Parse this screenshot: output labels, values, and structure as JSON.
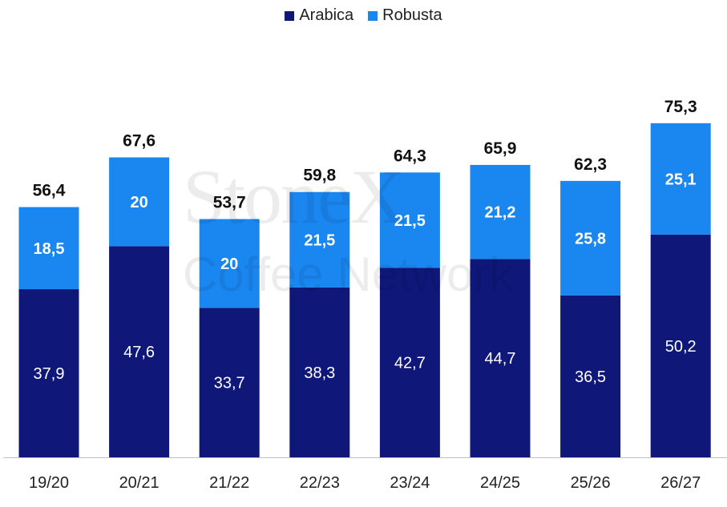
{
  "chart_data": {
    "type": "bar",
    "stacked": true,
    "categories": [
      "19/20",
      "20/21",
      "21/22",
      "22/23",
      "23/24",
      "24/25",
      "25/26",
      "26/27"
    ],
    "series": [
      {
        "name": "Arabica",
        "color": "#0f1878",
        "values": [
          37.9,
          47.6,
          33.7,
          38.3,
          42.7,
          44.7,
          36.5,
          50.2
        ],
        "labels": [
          "37,9",
          "47,6",
          "33,7",
          "38,3",
          "42,7",
          "44,7",
          "36,5",
          "50,2"
        ]
      },
      {
        "name": "Robusta",
        "color": "#1a86f0",
        "values": [
          18.5,
          20,
          20,
          21.5,
          21.5,
          21.2,
          25.8,
          25.1
        ],
        "labels": [
          "18,5",
          "20",
          "20",
          "21,5",
          "21,5",
          "21,2",
          "25,8",
          "25,1"
        ]
      }
    ],
    "totals": [
      56.4,
      67.6,
      53.7,
      59.8,
      64.3,
      65.9,
      62.3,
      75.3
    ],
    "total_labels": [
      "56,4",
      "67,6",
      "53,7",
      "59,8",
      "64,3",
      "65,9",
      "62,3",
      "75,3"
    ],
    "ylim": [
      0,
      80
    ],
    "legend_position": "top-center",
    "grid": false
  },
  "watermark": {
    "line1": "StoneX",
    "line2": "Coffee Network"
  },
  "colors": {
    "axis": "#bfbfbf",
    "text": "#222222",
    "total_text": "#111111"
  }
}
